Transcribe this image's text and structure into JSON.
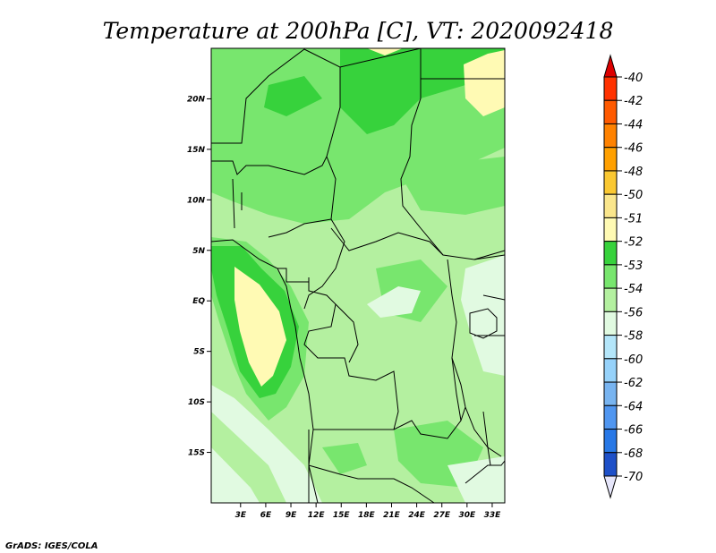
{
  "title": "Temperature at 200hPa [C], VT: 2020092418",
  "credit": "GrADS: IGES/COLA",
  "map": {
    "lon_range": [
      -0.5,
      34.5
    ],
    "lat_range": [
      -20,
      25
    ],
    "lon_ticks": [
      {
        "value": 3,
        "label": "3E"
      },
      {
        "value": 6,
        "label": "6E"
      },
      {
        "value": 9,
        "label": "9E"
      },
      {
        "value": 12,
        "label": "12E"
      },
      {
        "value": 15,
        "label": "15E"
      },
      {
        "value": 18,
        "label": "18E"
      },
      {
        "value": 21,
        "label": "21E"
      },
      {
        "value": 24,
        "label": "24E"
      },
      {
        "value": 27,
        "label": "27E"
      },
      {
        "value": 30,
        "label": "30E"
      },
      {
        "value": 33,
        "label": "33E"
      }
    ],
    "lat_ticks": [
      {
        "value": 20,
        "label": "20N"
      },
      {
        "value": 15,
        "label": "15N"
      },
      {
        "value": 10,
        "label": "10N"
      },
      {
        "value": 5,
        "label": "5N"
      },
      {
        "value": 0,
        "label": "EQ"
      },
      {
        "value": -5,
        "label": "5S"
      },
      {
        "value": -10,
        "label": "10S"
      },
      {
        "value": -15,
        "label": "15S"
      }
    ],
    "base_color": "#b4f0a0"
  },
  "legend": {
    "levels": [
      {
        "label": "-40",
        "color": "#ff3200"
      },
      {
        "label": "-42",
        "color": "#ff5a00"
      },
      {
        "label": "-44",
        "color": "#ff8200"
      },
      {
        "label": "-46",
        "color": "#ffa000"
      },
      {
        "label": "-48",
        "color": "#fac832"
      },
      {
        "label": "-50",
        "color": "#fae68c"
      },
      {
        "label": "-51",
        "color": "#fffab4"
      },
      {
        "label": "-52",
        "color": "#37d23c"
      },
      {
        "label": "-53",
        "color": "#78e66e"
      },
      {
        "label": "-54",
        "color": "#b4f0a0"
      },
      {
        "label": "-56",
        "color": "#e1fae1"
      },
      {
        "label": "-58",
        "color": "#b4e6fa"
      },
      {
        "label": "-60",
        "color": "#96d2fa"
      },
      {
        "label": "-62",
        "color": "#78b4f0"
      },
      {
        "label": "-64",
        "color": "#5096f0"
      },
      {
        "label": "-66",
        "color": "#2878e6"
      },
      {
        "label": "-68",
        "color": "#1e50c8"
      },
      {
        "label": "-70",
        "color": "#0a1478"
      }
    ],
    "top_arrow_color": "#dc0000",
    "bottom_arrow_color": "#e6e6fa"
  }
}
